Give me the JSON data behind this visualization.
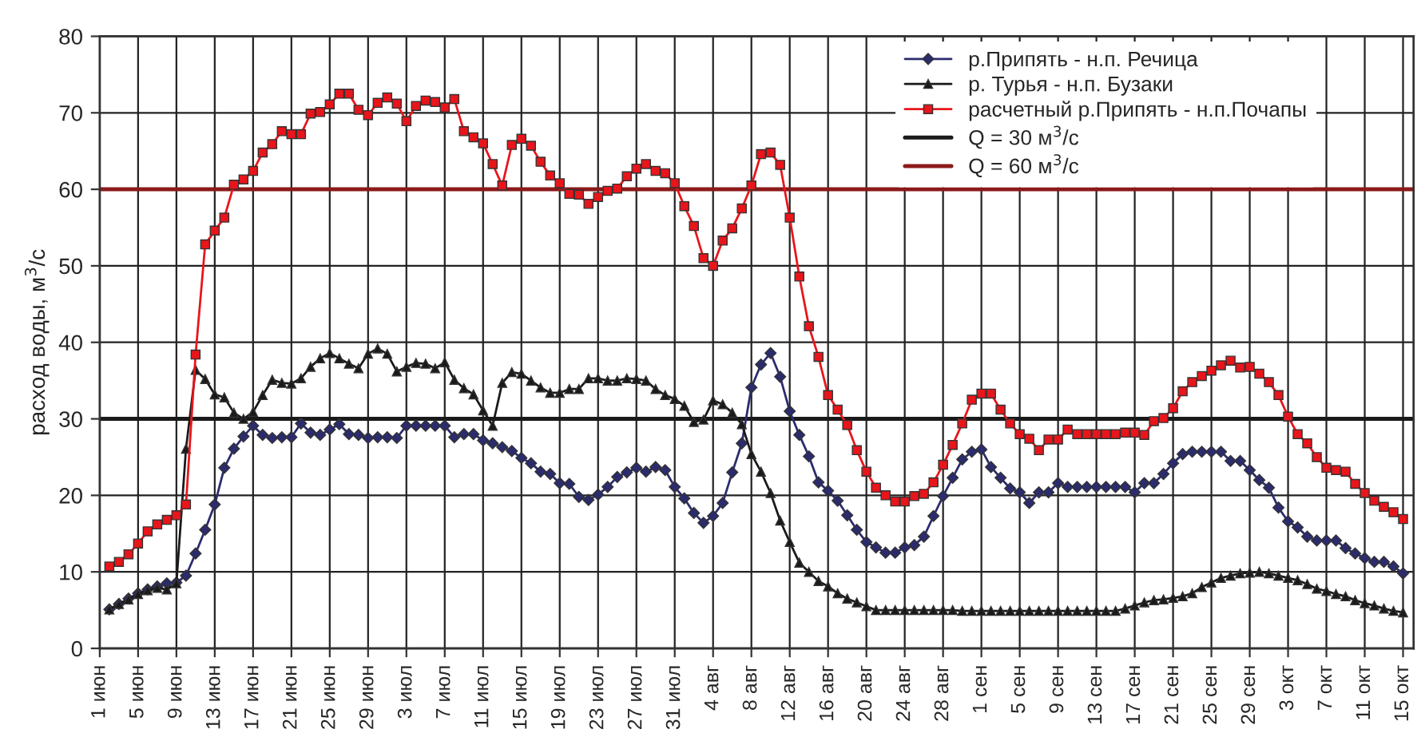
{
  "chart_data": {
    "type": "line",
    "ylabel": "расход воды, м$^{3}$/с",
    "categories": [
      "1 июн",
      null,
      null,
      null,
      "5 июн",
      null,
      null,
      null,
      "9 июн",
      null,
      null,
      null,
      "13 июн",
      null,
      null,
      null,
      "17 июн",
      null,
      null,
      null,
      "21 июн",
      null,
      null,
      null,
      "25 июн",
      null,
      null,
      null,
      "29 июн",
      null,
      null,
      null,
      "3 июл",
      null,
      null,
      null,
      "7 июл",
      null,
      null,
      null,
      "11 июл",
      null,
      null,
      null,
      "15 июл",
      null,
      null,
      null,
      "19 июл",
      null,
      null,
      null,
      "23 июл",
      null,
      null,
      null,
      "27 июл",
      null,
      null,
      null,
      "31 июл",
      null,
      null,
      null,
      "4 авг",
      null,
      null,
      null,
      "8 авг",
      null,
      null,
      null,
      "12 авг",
      null,
      null,
      null,
      "16 авг",
      null,
      null,
      null,
      "20 авг",
      null,
      null,
      null,
      "24 авг",
      null,
      null,
      null,
      "28 авг",
      null,
      null,
      null,
      "1 сен",
      null,
      null,
      null,
      "5 сен",
      null,
      null,
      null,
      "9 сен",
      null,
      null,
      null,
      "13 сен",
      null,
      null,
      null,
      "17 сен",
      null,
      null,
      null,
      "21 сен",
      null,
      null,
      null,
      "25 сен",
      null,
      null,
      null,
      "29 сен",
      null,
      null,
      null,
      "3 окт",
      null,
      null,
      null,
      "7 окт",
      null,
      null,
      null,
      "11 окт",
      null,
      null,
      null,
      "15 окт"
    ],
    "series": [
      {
        "name": "р.Припять - н.п. Речица",
        "color": "#2b2b6e",
        "marker": "diamond",
        "values": [
          null,
          5.1,
          5.8,
          6.5,
          7.2,
          7.7,
          8.1,
          8.5,
          8.6,
          9.5,
          12.4,
          15.5,
          18.8,
          23.6,
          26.1,
          27.7,
          29.1,
          27.9,
          27.5,
          27.6,
          27.6,
          29.4,
          28.2,
          27.9,
          28.6,
          29.3,
          28.0,
          27.9,
          27.5,
          27.6,
          27.6,
          27.5,
          29.1,
          29.1,
          29.1,
          29.1,
          29.1,
          27.6,
          28.0,
          28.0,
          27.2,
          26.8,
          26.3,
          25.8,
          24.9,
          24.2,
          23.1,
          22.8,
          21.6,
          21.5,
          19.8,
          19.4,
          20.1,
          21.1,
          22.4,
          23.0,
          23.6,
          23.1,
          23.7,
          23.3,
          21.1,
          19.6,
          17.7,
          16.4,
          17.3,
          19.0,
          23.0,
          26.8,
          34.1,
          37.1,
          38.6,
          35.5,
          31.0,
          27.9,
          25.1,
          21.7,
          20.6,
          19.3,
          17.4,
          15.5,
          13.9,
          13.2,
          12.5,
          12.5,
          13.2,
          13.5,
          14.6,
          17.3,
          19.9,
          22.3,
          24.7,
          25.7,
          26.0,
          23.7,
          22.3,
          20.9,
          20.4,
          19.0,
          20.4,
          20.4,
          21.6,
          21.1,
          21.1,
          21.1,
          21.1,
          21.1,
          21.1,
          21.1,
          20.4,
          21.6,
          21.6,
          22.8,
          24.2,
          25.4,
          25.7,
          25.7,
          25.7,
          25.7,
          24.5,
          24.5,
          23.3,
          22.0,
          21.0,
          18.4,
          16.6,
          15.8,
          14.6,
          14.1,
          14.1,
          14.1,
          13.1,
          12.4,
          11.8,
          11.3,
          11.3,
          10.7,
          9.8
        ]
      },
      {
        "name": "р. Турья - н.п. Бузаки",
        "color": "#1a1a1a",
        "marker": "triangle",
        "values": [
          null,
          5.1,
          5.8,
          6.4,
          7.1,
          7.6,
          7.9,
          7.7,
          8.5,
          26.1,
          36.4,
          35.2,
          33.2,
          32.8,
          30.8,
          30.0,
          30.9,
          33.1,
          35.1,
          34.7,
          34.6,
          35.3,
          36.8,
          37.9,
          38.6,
          37.9,
          37.2,
          36.6,
          38.5,
          39.2,
          38.5,
          36.2,
          36.8,
          37.3,
          37.2,
          36.6,
          37.4,
          35.1,
          34.0,
          33.2,
          31.1,
          29.1,
          34.7,
          36.1,
          35.9,
          35.0,
          34.1,
          33.4,
          33.4,
          33.9,
          33.9,
          35.3,
          35.3,
          35.0,
          35.0,
          35.3,
          35.2,
          35.0,
          33.9,
          33.1,
          32.6,
          31.7,
          29.6,
          29.9,
          32.4,
          31.9,
          30.8,
          29.3,
          25.4,
          23.1,
          20.3,
          16.7,
          13.9,
          11.2,
          10.0,
          8.8,
          8.1,
          7.2,
          6.5,
          6.0,
          5.5,
          5.0,
          5.0,
          5.0,
          5.0,
          5.0,
          5.0,
          5.0,
          5.0,
          5.0,
          4.9,
          4.9,
          4.9,
          4.9,
          4.9,
          4.9,
          4.9,
          4.9,
          4.9,
          4.9,
          4.9,
          4.9,
          4.9,
          4.9,
          4.9,
          4.9,
          4.9,
          5.2,
          5.6,
          6.0,
          6.3,
          6.4,
          6.6,
          6.8,
          7.2,
          8.0,
          8.6,
          9.2,
          9.5,
          9.8,
          9.9,
          10.0,
          9.8,
          9.5,
          9.2,
          8.9,
          8.4,
          7.8,
          7.5,
          7.1,
          6.8,
          6.3,
          5.9,
          5.6,
          5.2,
          4.9,
          4.7
        ]
      },
      {
        "name": "расчетный р.Припять - н.п.Почапы",
        "color": "#e8151b",
        "marker": "square",
        "values": [
          null,
          10.7,
          11.3,
          12.3,
          13.7,
          15.3,
          16.2,
          16.8,
          17.4,
          18.8,
          38.4,
          52.8,
          54.6,
          56.3,
          60.6,
          61.3,
          62.4,
          64.8,
          65.9,
          67.6,
          67.2,
          67.2,
          69.9,
          70.1,
          71.1,
          72.5,
          72.5,
          70.4,
          69.7,
          71.3,
          72.0,
          71.2,
          68.9,
          70.9,
          71.6,
          71.4,
          70.7,
          71.8,
          67.6,
          66.8,
          66.0,
          63.3,
          60.5,
          65.8,
          66.6,
          65.7,
          63.6,
          61.8,
          60.8,
          59.4,
          59.3,
          58.1,
          59.0,
          59.8,
          60.1,
          61.7,
          62.7,
          63.3,
          62.4,
          62.1,
          60.8,
          57.8,
          55.2,
          51.0,
          50.0,
          53.3,
          54.9,
          57.5,
          60.5,
          64.6,
          64.8,
          63.2,
          56.3,
          48.6,
          42.1,
          38.1,
          33.1,
          31.2,
          29.2,
          25.9,
          23.1,
          21.0,
          20.0,
          19.2,
          19.2,
          19.9,
          20.2,
          21.7,
          24.0,
          26.6,
          29.4,
          32.5,
          33.3,
          33.3,
          31.2,
          29.4,
          28.0,
          27.4,
          25.9,
          27.3,
          27.3,
          28.6,
          28.0,
          28.0,
          28.0,
          28.0,
          28.0,
          28.2,
          28.2,
          27.9,
          29.7,
          30.1,
          31.4,
          33.6,
          34.8,
          35.6,
          36.3,
          37.0,
          37.6,
          36.7,
          36.8,
          35.9,
          34.8,
          33.1,
          30.3,
          28.0,
          26.8,
          25.0,
          23.6,
          23.3,
          23.1,
          21.5,
          20.3,
          19.3,
          18.5,
          17.8,
          16.9
        ]
      }
    ],
    "ref_lines": [
      {
        "axis": "y",
        "value": 30,
        "label": "Q = 30 м$^{3}$/с",
        "color": "#1a1a1a",
        "line_style": "solid"
      },
      {
        "axis": "y",
        "value": 60,
        "label": "Q = 60 м$^{3}$/с",
        "color": "#8b1a1a",
        "line_style": "solid"
      }
    ],
    "ylim": [
      0,
      80
    ],
    "yticks": [
      0,
      10,
      20,
      30,
      40,
      50,
      60,
      70,
      80
    ],
    "grid": true,
    "legend": "top right",
    "line_style": "solid"
  }
}
